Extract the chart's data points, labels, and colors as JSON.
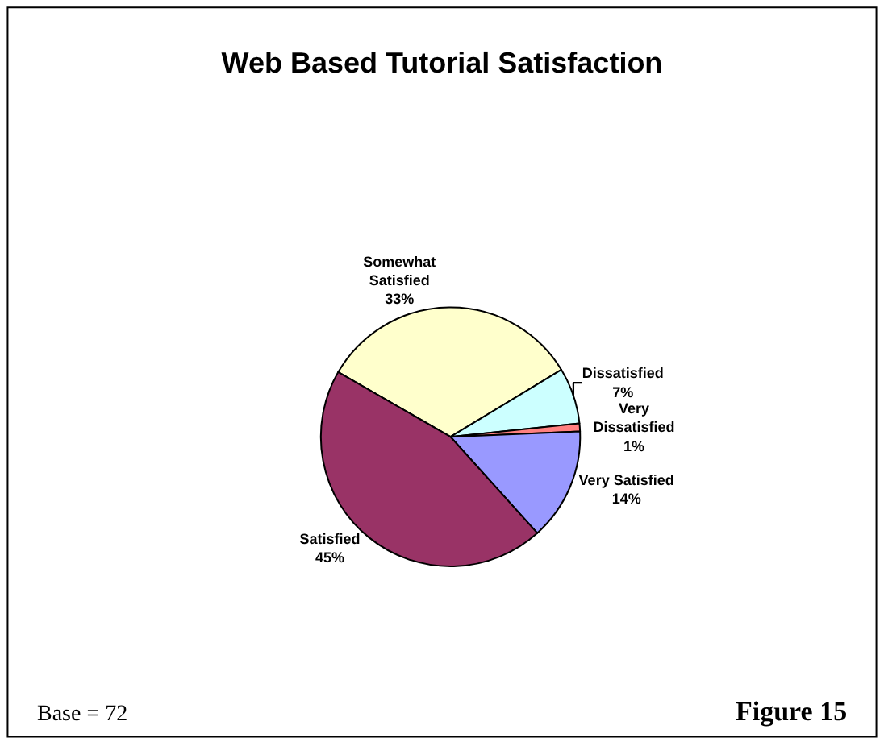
{
  "chart_data": {
    "type": "pie",
    "title": "Web Based Tutorial Satisfaction",
    "categories": [
      "Somewhat Satisfied",
      "Dissatisfied",
      "Very Dissatisfied",
      "Very Satisfied",
      "Satisfied"
    ],
    "values": [
      33,
      7,
      1,
      14,
      45
    ],
    "value_labels": [
      "33%",
      "7%",
      "1%",
      "14%",
      "45%"
    ],
    "colors": [
      "#ffffcc",
      "#ccffff",
      "#ff8080",
      "#9999ff",
      "#993366"
    ],
    "annotations": [
      "Base = 72",
      "Figure 15"
    ],
    "legend": false
  }
}
